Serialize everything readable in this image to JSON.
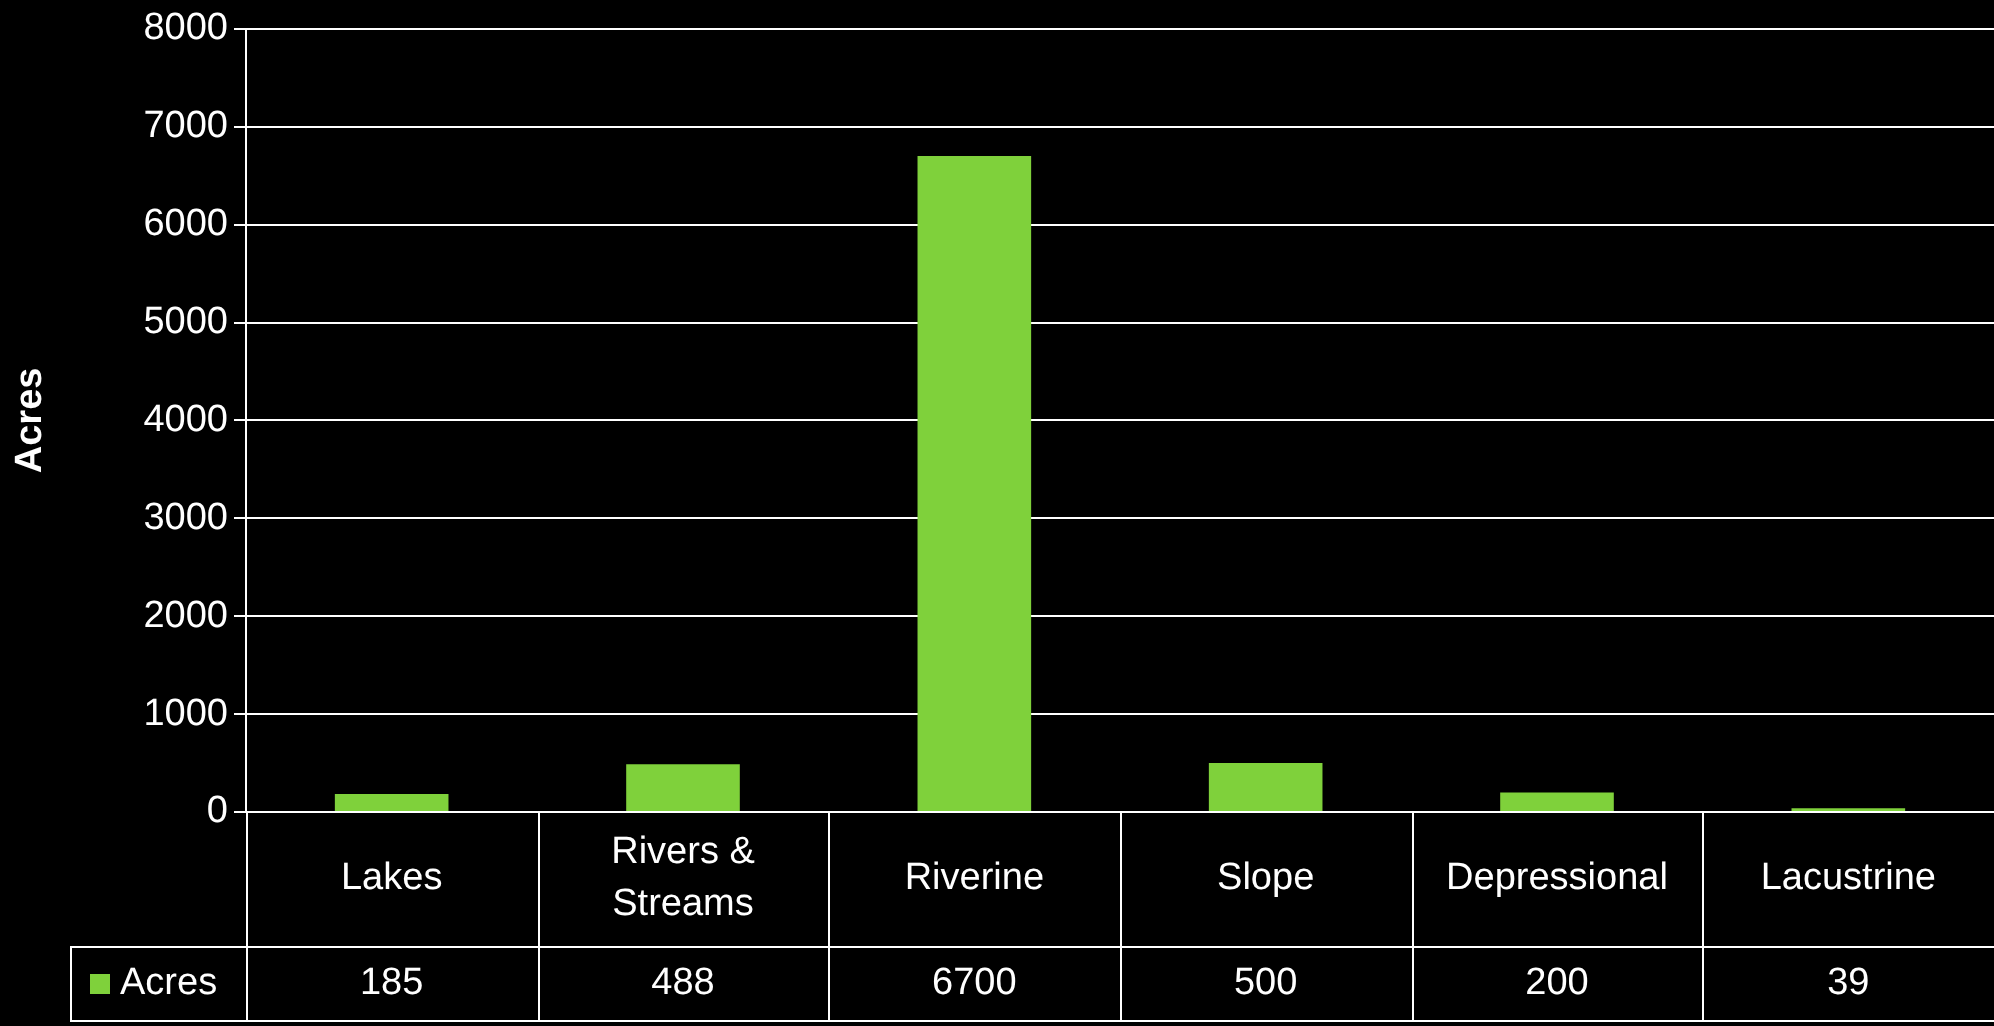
{
  "chart_data": {
    "type": "bar",
    "ylabel": "Acres",
    "categories": [
      "Lakes",
      "Rivers & Streams",
      "Riverine",
      "Slope",
      "Depressional",
      "Lacustrine"
    ],
    "series": [
      {
        "name": "Acres",
        "color": "#7fd13b",
        "values": [
          185,
          488,
          6700,
          500,
          200,
          39
        ]
      }
    ],
    "ylim": [
      0,
      8000
    ],
    "yticks": [
      0,
      1000,
      2000,
      3000,
      4000,
      5000,
      6000,
      7000,
      8000
    ],
    "grid": "y",
    "legend": "bottom",
    "data_labels": true
  }
}
